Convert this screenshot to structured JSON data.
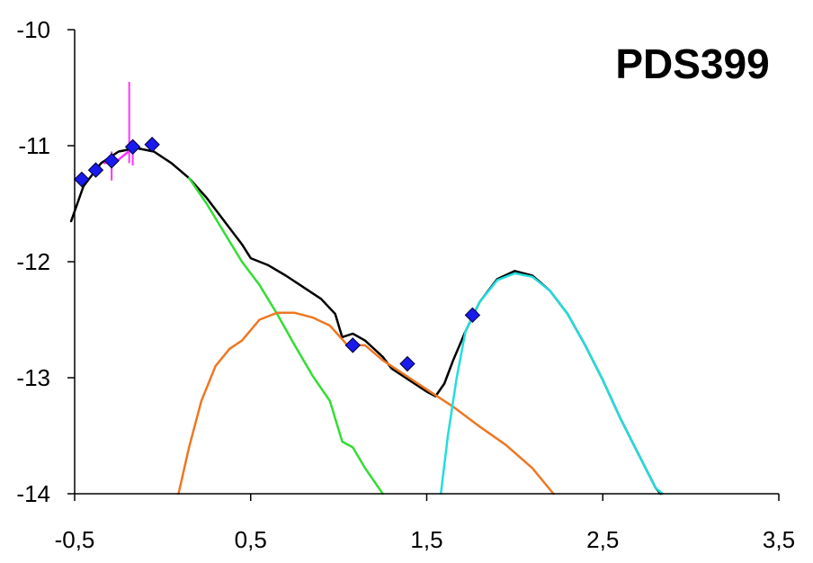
{
  "chart_data": {
    "type": "line",
    "title": "PDS399",
    "xlabel": "",
    "ylabel": "",
    "xlim": [
      -0.5,
      3.5
    ],
    "ylim": [
      -14,
      -10
    ],
    "x_ticks": [
      -0.5,
      0.5,
      1.5,
      2.5,
      3.5
    ],
    "x_tick_labels": [
      "-0,5",
      "0,5",
      "1,5",
      "2,5",
      "3,5"
    ],
    "y_ticks": [
      -10,
      -11,
      -12,
      -13,
      -14
    ],
    "y_tick_labels": [
      "-10",
      "-11",
      "-12",
      "-13",
      "-14"
    ],
    "grid": false,
    "legend": "none",
    "series": [
      {
        "color": "#000000",
        "kind": "line",
        "points": [
          [
            -0.52,
            -11.65
          ],
          [
            -0.45,
            -11.35
          ],
          [
            -0.35,
            -11.15
          ],
          [
            -0.25,
            -11.05
          ],
          [
            -0.15,
            -11.02
          ],
          [
            -0.05,
            -11.05
          ],
          [
            0.05,
            -11.15
          ],
          [
            0.15,
            -11.28
          ],
          [
            0.25,
            -11.45
          ],
          [
            0.35,
            -11.65
          ],
          [
            0.45,
            -11.85
          ],
          [
            0.5,
            -11.97
          ],
          [
            0.6,
            -12.03
          ],
          [
            0.7,
            -12.12
          ],
          [
            0.8,
            -12.22
          ],
          [
            0.9,
            -12.32
          ],
          [
            0.98,
            -12.45
          ],
          [
            1.02,
            -12.65
          ],
          [
            1.08,
            -12.62
          ],
          [
            1.15,
            -12.68
          ],
          [
            1.25,
            -12.82
          ],
          [
            1.3,
            -12.92
          ],
          [
            1.4,
            -13.02
          ],
          [
            1.5,
            -13.12
          ],
          [
            1.55,
            -13.16
          ],
          [
            1.6,
            -13.05
          ],
          [
            1.65,
            -12.85
          ],
          [
            1.72,
            -12.6
          ],
          [
            1.8,
            -12.35
          ],
          [
            1.9,
            -12.15
          ],
          [
            2.0,
            -12.08
          ],
          [
            2.1,
            -12.12
          ],
          [
            2.2,
            -12.25
          ],
          [
            2.3,
            -12.45
          ],
          [
            2.4,
            -12.72
          ],
          [
            2.5,
            -13.02
          ],
          [
            2.6,
            -13.35
          ],
          [
            2.7,
            -13.65
          ],
          [
            2.8,
            -13.95
          ],
          [
            2.83,
            -14.0
          ]
        ]
      },
      {
        "color": "#33dd33",
        "kind": "line",
        "points": [
          [
            0.15,
            -11.28
          ],
          [
            0.25,
            -11.5
          ],
          [
            0.35,
            -11.75
          ],
          [
            0.45,
            -12.0
          ],
          [
            0.55,
            -12.2
          ],
          [
            0.65,
            -12.45
          ],
          [
            0.75,
            -12.72
          ],
          [
            0.85,
            -12.98
          ],
          [
            0.95,
            -13.2
          ],
          [
            1.0,
            -13.45
          ],
          [
            1.02,
            -13.55
          ],
          [
            1.08,
            -13.6
          ],
          [
            1.15,
            -13.78
          ],
          [
            1.25,
            -14.0
          ]
        ]
      },
      {
        "color": "#ee7722",
        "kind": "line",
        "points": [
          [
            0.09,
            -14.0
          ],
          [
            0.15,
            -13.6
          ],
          [
            0.22,
            -13.2
          ],
          [
            0.3,
            -12.9
          ],
          [
            0.38,
            -12.75
          ],
          [
            0.45,
            -12.68
          ],
          [
            0.55,
            -12.5
          ],
          [
            0.65,
            -12.44
          ],
          [
            0.75,
            -12.44
          ],
          [
            0.85,
            -12.48
          ],
          [
            0.95,
            -12.55
          ],
          [
            1.05,
            -12.72
          ],
          [
            1.15,
            -12.72
          ],
          [
            1.25,
            -12.85
          ],
          [
            1.35,
            -12.95
          ],
          [
            1.5,
            -13.1
          ],
          [
            1.65,
            -13.25
          ],
          [
            1.8,
            -13.42
          ],
          [
            1.95,
            -13.58
          ],
          [
            2.1,
            -13.78
          ],
          [
            2.22,
            -14.0
          ]
        ]
      },
      {
        "color": "#22dddd",
        "kind": "line",
        "points": [
          [
            1.58,
            -14.0
          ],
          [
            1.62,
            -13.5
          ],
          [
            1.67,
            -13.0
          ],
          [
            1.72,
            -12.6
          ],
          [
            1.8,
            -12.35
          ],
          [
            1.9,
            -12.16
          ],
          [
            2.0,
            -12.1
          ],
          [
            2.1,
            -12.13
          ],
          [
            2.2,
            -12.25
          ],
          [
            2.3,
            -12.45
          ],
          [
            2.4,
            -12.72
          ],
          [
            2.5,
            -13.02
          ],
          [
            2.6,
            -13.35
          ],
          [
            2.7,
            -13.65
          ],
          [
            2.8,
            -13.95
          ],
          [
            2.84,
            -14.0
          ]
        ]
      },
      {
        "color": "#ff33ff",
        "kind": "line",
        "points": [
          [
            -0.33,
            -11.15
          ],
          [
            -0.29,
            -11.13
          ],
          [
            -0.25,
            -11.12
          ],
          [
            -0.21,
            -11.07
          ],
          [
            -0.17,
            -11.02
          ]
        ]
      },
      {
        "color": "#ff33ff",
        "kind": "errorbars",
        "bars": [
          {
            "x": -0.29,
            "low": -11.3,
            "high": -11.05
          },
          {
            "x": -0.19,
            "low": -11.15,
            "high": -10.45
          },
          {
            "x": -0.17,
            "low": -11.17,
            "high": -10.95
          }
        ]
      },
      {
        "color": "#1a1aee",
        "kind": "scatter",
        "marker": "diamond",
        "points": [
          [
            -0.46,
            -11.29
          ],
          [
            -0.38,
            -11.21
          ],
          [
            -0.29,
            -11.13
          ],
          [
            -0.17,
            -11.01
          ],
          [
            -0.06,
            -10.99
          ],
          [
            1.08,
            -12.72
          ],
          [
            1.39,
            -12.88
          ],
          [
            1.76,
            -12.46
          ]
        ]
      }
    ]
  }
}
